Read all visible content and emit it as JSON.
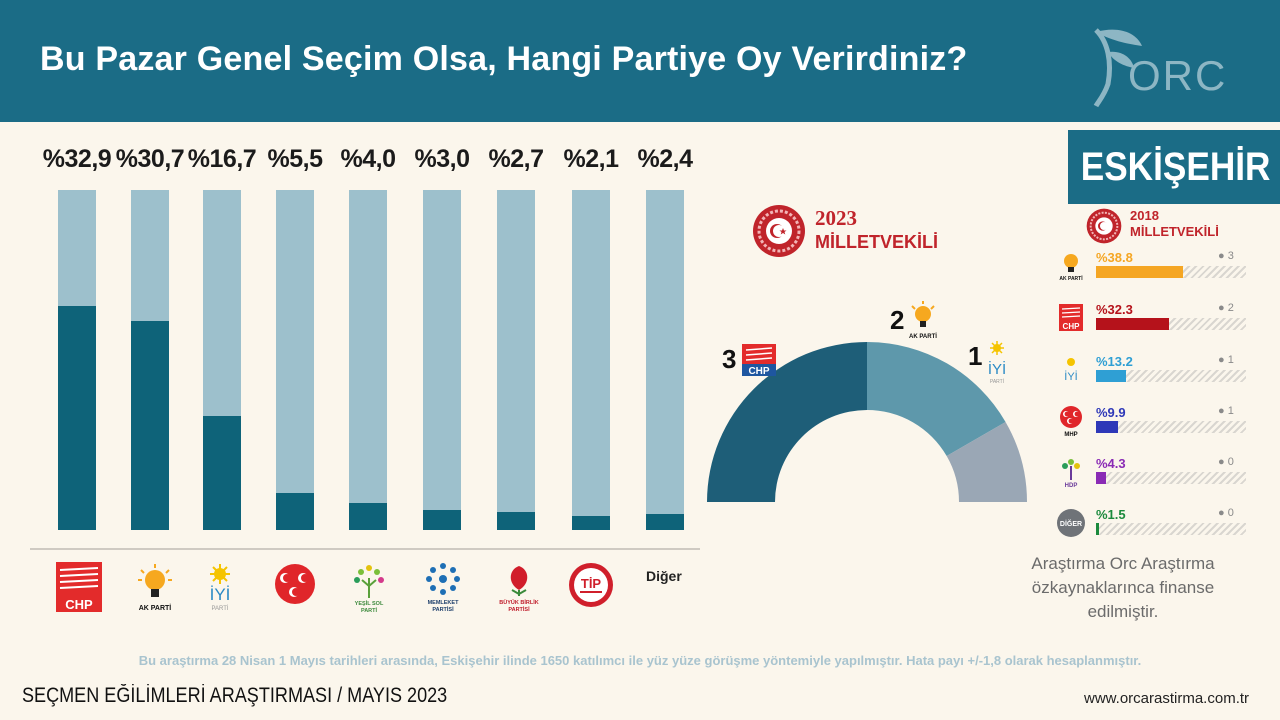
{
  "header": {
    "title": "Bu Pazar Genel Seçim Olsa, Hangi Partiye Oy Verirdiniz?",
    "logo_text": "ORC"
  },
  "city": "ESKİŞEHİR",
  "chart_data": [
    {
      "type": "bar",
      "title": "Bu Pazar Genel Seçim Olsa, Hangi Partiye Oy Verirdiniz?",
      "categories": [
        "CHP",
        "AK PARTİ",
        "İYİ PARTİ",
        "MHP",
        "YEŞİL SOL PARTİ",
        "MEMLEKET PARTİSİ",
        "BÜYÜK BİRLİK PARTİSİ",
        "TİP",
        "Diğer"
      ],
      "values": [
        32.9,
        30.7,
        16.7,
        5.5,
        4.0,
        3.0,
        2.7,
        2.1,
        2.4
      ],
      "value_labels": [
        "%32,9",
        "%30,7",
        "%16,7",
        "%5,5",
        "%4,0",
        "%3,0",
        "%2,7",
        "%2,1",
        "%2,4"
      ],
      "ylim": [
        0,
        50
      ]
    },
    {
      "type": "pie",
      "title": "2023 MİLLETVEKİLİ",
      "categories": [
        "CHP",
        "AK PARTİ",
        "İYİ PARTİ"
      ],
      "values": [
        3,
        2,
        1
      ],
      "colors": [
        "#1e5e78",
        "#5e98ab",
        "#9aa7b5"
      ]
    },
    {
      "type": "bar",
      "title": "2018 MİLLETVEKİLİ",
      "categories": [
        "AK PARTİ",
        "CHP",
        "İYİ PARTİ",
        "MHP",
        "HDP",
        "DİĞER"
      ],
      "values": [
        38.8,
        32.3,
        13.2,
        9.9,
        4.3,
        1.5
      ],
      "value_labels": [
        "%38.8",
        "%32.3",
        "%13.2",
        "%9.9",
        "%4.3",
        "%1.5"
      ],
      "seats": [
        3,
        2,
        1,
        1,
        0,
        0
      ],
      "colors": [
        "#f5a623",
        "#b5121b",
        "#2f9fd4",
        "#2e38b8",
        "#8a2bb5",
        "#1b8a3d"
      ],
      "xlim": [
        0,
        100
      ]
    }
  ],
  "parties": {
    "chp": "CHP",
    "akp": "AK PARTİ",
    "iyi": "İYİ",
    "iyi_sub": "PARTİ",
    "mhp": "MHP",
    "hdp": "HDP",
    "yesil": [
      "YEŞİL SOL",
      "PARTİ"
    ],
    "memleket": [
      "MEMLEKET",
      "PARTİSİ"
    ],
    "bbp": [
      "BÜYÜK BİRLİK",
      "PARTİSİ"
    ],
    "tip": "TİP",
    "diger": "Diğer",
    "diger_upper": "DİĞER"
  },
  "mv2023": {
    "year": "2023",
    "label": "MİLLETVEKİLİ"
  },
  "mv2018": {
    "year": "2018",
    "label": "MİLLETVEKİLİ"
  },
  "funding_note": "Araştırma Orc Araştırma özkaynaklarınca finanse edilmiştir.",
  "methodology": "Bu araştırma 28 Nisan 1 Mayıs tarihleri arasında, Eskişehir ilinde 1650 katılımcı ile yüz yüze görüşme yöntemiyle yapılmıştır. Hata payı +/-1,8 olarak hesaplanmıştır.",
  "footer": {
    "left": "SEÇMEN EĞİLİMLERİ ARAŞTIRMASI / MAYIS 2023",
    "right": "www.orcarastirma.com.tr"
  },
  "colors": {
    "header_bg": "#1b6c86",
    "bar_dark": "#0e6379",
    "bar_light": "#9dc0cc",
    "accent_red": "#c0242b"
  }
}
